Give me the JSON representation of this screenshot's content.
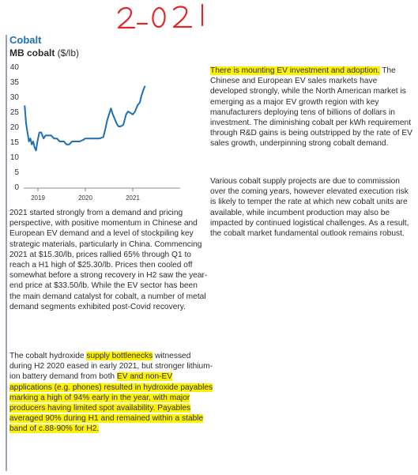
{
  "annotation": {
    "handwritten_year": "2021"
  },
  "header": {
    "section_title": "Cobalt",
    "chart_title_bold": "MB cobalt",
    "chart_title_unit": " ($/lb)"
  },
  "chart_data": {
    "type": "line",
    "title": "MB cobalt ($/lb)",
    "xlabel": "",
    "ylabel": "",
    "ylim": [
      0,
      40
    ],
    "yticks": [
      0,
      5,
      10,
      15,
      20,
      25,
      30,
      35,
      40
    ],
    "xticks": [
      {
        "label": "2019",
        "x": 2019.0
      },
      {
        "label": "2020",
        "x": 2020.0
      },
      {
        "label": "2021",
        "x": 2021.0
      }
    ],
    "xlim": [
      2018.7,
      2022.0
    ],
    "grid": false,
    "color": "#1f6fb5",
    "series": [
      {
        "x": [
          2018.72,
          2018.75,
          2018.78,
          2018.81,
          2018.84,
          2018.87,
          2018.9,
          2018.93,
          2018.96,
          2018.99,
          2019.03,
          2019.07,
          2019.12,
          2019.16,
          2019.2,
          2019.24,
          2019.28,
          2019.34,
          2019.4,
          2019.46,
          2019.5,
          2019.55,
          2019.6,
          2019.66,
          2019.72,
          2019.8,
          2019.88,
          2019.95,
          2020.0,
          2020.1,
          2020.2,
          2020.3,
          2020.38,
          2020.42,
          2020.46,
          2020.5,
          2020.54,
          2020.58,
          2020.62,
          2020.66,
          2020.7,
          2020.74,
          2020.8,
          2020.86,
          2020.9,
          2020.95,
          2021.0,
          2021.05,
          2021.1,
          2021.15,
          2021.18,
          2021.22,
          2021.26
        ],
        "y": [
          27,
          21,
          18,
          15,
          16,
          14,
          15,
          13,
          12,
          15,
          18,
          18,
          16,
          17,
          17,
          17,
          17,
          16,
          16,
          15,
          15,
          15,
          14,
          14,
          15,
          15,
          15,
          15.5,
          16,
          16,
          16,
          16,
          16.5,
          19,
          22,
          24,
          26,
          24,
          22.5,
          21,
          20,
          20,
          20.5,
          24,
          25,
          24.5,
          24,
          25,
          27,
          28,
          30,
          32,
          33.5
        ]
      }
    ]
  },
  "paragraphs": {
    "p1": "2021 started strongly from a demand and pricing perspective, with positive momentum in Chinese and European EV demand and a level of stockpiling key strategic materials, particularly in China. Commencing 2021 at $15.30/lb, prices rallied 65% through Q1 to reach a H1 high of $25.30/lb. Prices then cooled off somewhat before a strong recovery in H2 saw the year-end price at $33.50/lb. While the EV sector has been the main demand catalyst for cobalt, a number of metal demand segments exhibited post-Covid recovery.",
    "p2_a": "The cobalt hydroxide ",
    "p2_b": "supply bottlenecks",
    "p2_c": " witnessed during H2 2020 eased in early 2021, but stronger lithium-ion battery demand from both ",
    "p2_d": "EV and non-EV applications (e.g. phones) resulted in hydroxide payables marking a high of 94% early in the year, with major producers having limited spot availability. Payables averaged 90% during H1 and remained within a stable band of c.88-90% for H2.",
    "p3_a": "There is mounting EV investment and adoption.",
    "p3_b": " The Chinese and European EV sales markets have developed strongly, while the North American market is emerging as a major EV growth region with key manufacturers deploying tens of billions of dollars in investment. The diminishing cobalt per kWh requirement through R&D gains is being outstripped by the rate of EV sales growth, underpinning strong cobalt demand.",
    "p4": "Various cobalt supply projects are due to commission over the coming years, however elevated execution risk is likely to temper the rate at which new cobalt units are available, while incumbent production may also be impacted by continued logistical challenges. As a result, the cobalt market fundamental outlook remains robust."
  }
}
